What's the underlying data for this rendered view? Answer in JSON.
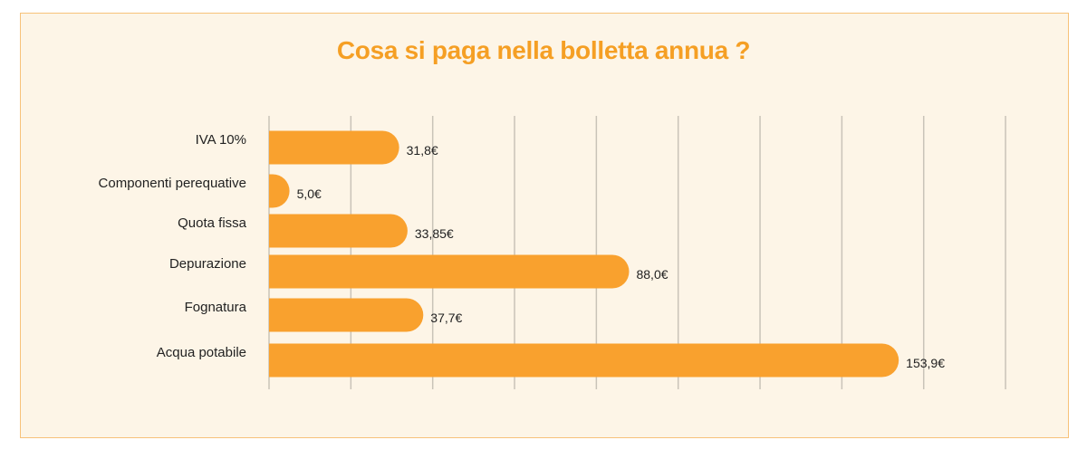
{
  "chart_data": {
    "type": "bar",
    "orientation": "horizontal",
    "title": "Cosa si paga nella bolletta annua ?",
    "categories": [
      "IVA 10%",
      "Componenti perequative",
      "Quota fissa",
      "Depurazione",
      "Fognatura",
      "Acqua potabile"
    ],
    "values": [
      31.8,
      5.0,
      33.85,
      88.0,
      37.7,
      153.9
    ],
    "value_labels": [
      "31,8€",
      "5,0€",
      "33,85€",
      "88,0€",
      "37,7€",
      "153,9€"
    ],
    "xlim": [
      0,
      180
    ],
    "grid": true,
    "bar_color": "#f9a12e"
  }
}
